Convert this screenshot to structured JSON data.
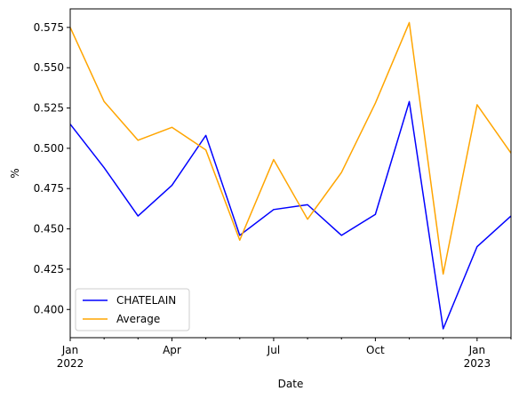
{
  "chart_data": {
    "type": "line",
    "xlabel": "Date",
    "ylabel": "%",
    "x": [
      "2022-01",
      "2022-02",
      "2022-03",
      "2022-04",
      "2022-05",
      "2022-06",
      "2022-07",
      "2022-08",
      "2022-09",
      "2022-10",
      "2022-11",
      "2022-12",
      "2023-01",
      "2023-02"
    ],
    "ylim": [
      0.3825,
      0.5865
    ],
    "yticks": [
      0.4,
      0.425,
      0.45,
      0.475,
      0.5,
      0.525,
      0.55,
      0.575
    ],
    "ytick_labels": [
      "0.400",
      "0.425",
      "0.450",
      "0.475",
      "0.500",
      "0.525",
      "0.550",
      "0.575"
    ],
    "xticks": [
      {
        "at": "2022-01",
        "labels": [
          "Jan",
          "2022"
        ]
      },
      {
        "at": "2022-04",
        "labels": [
          "Apr"
        ]
      },
      {
        "at": "2022-07",
        "labels": [
          "Jul"
        ]
      },
      {
        "at": "2022-10",
        "labels": [
          "Oct"
        ]
      },
      {
        "at": "2023-01",
        "labels": [
          "Jan",
          "2023"
        ]
      }
    ],
    "minor_xticks": [
      "2022-02",
      "2022-03",
      "2022-05",
      "2022-06",
      "2022-08",
      "2022-09",
      "2022-11",
      "2022-12",
      "2023-02"
    ],
    "series": [
      {
        "name": "CHATELAIN",
        "color": "#0000ff",
        "values": [
          0.515,
          0.488,
          0.458,
          0.477,
          0.508,
          0.446,
          0.462,
          0.465,
          0.446,
          0.459,
          0.529,
          0.388,
          0.439,
          0.458
        ]
      },
      {
        "name": "Average",
        "color": "#ffa500",
        "values": [
          0.575,
          0.529,
          0.505,
          0.513,
          0.499,
          0.443,
          0.493,
          0.456,
          0.485,
          0.528,
          0.578,
          0.422,
          0.527,
          0.497
        ]
      }
    ],
    "legend": "lower-left",
    "grid": false
  }
}
